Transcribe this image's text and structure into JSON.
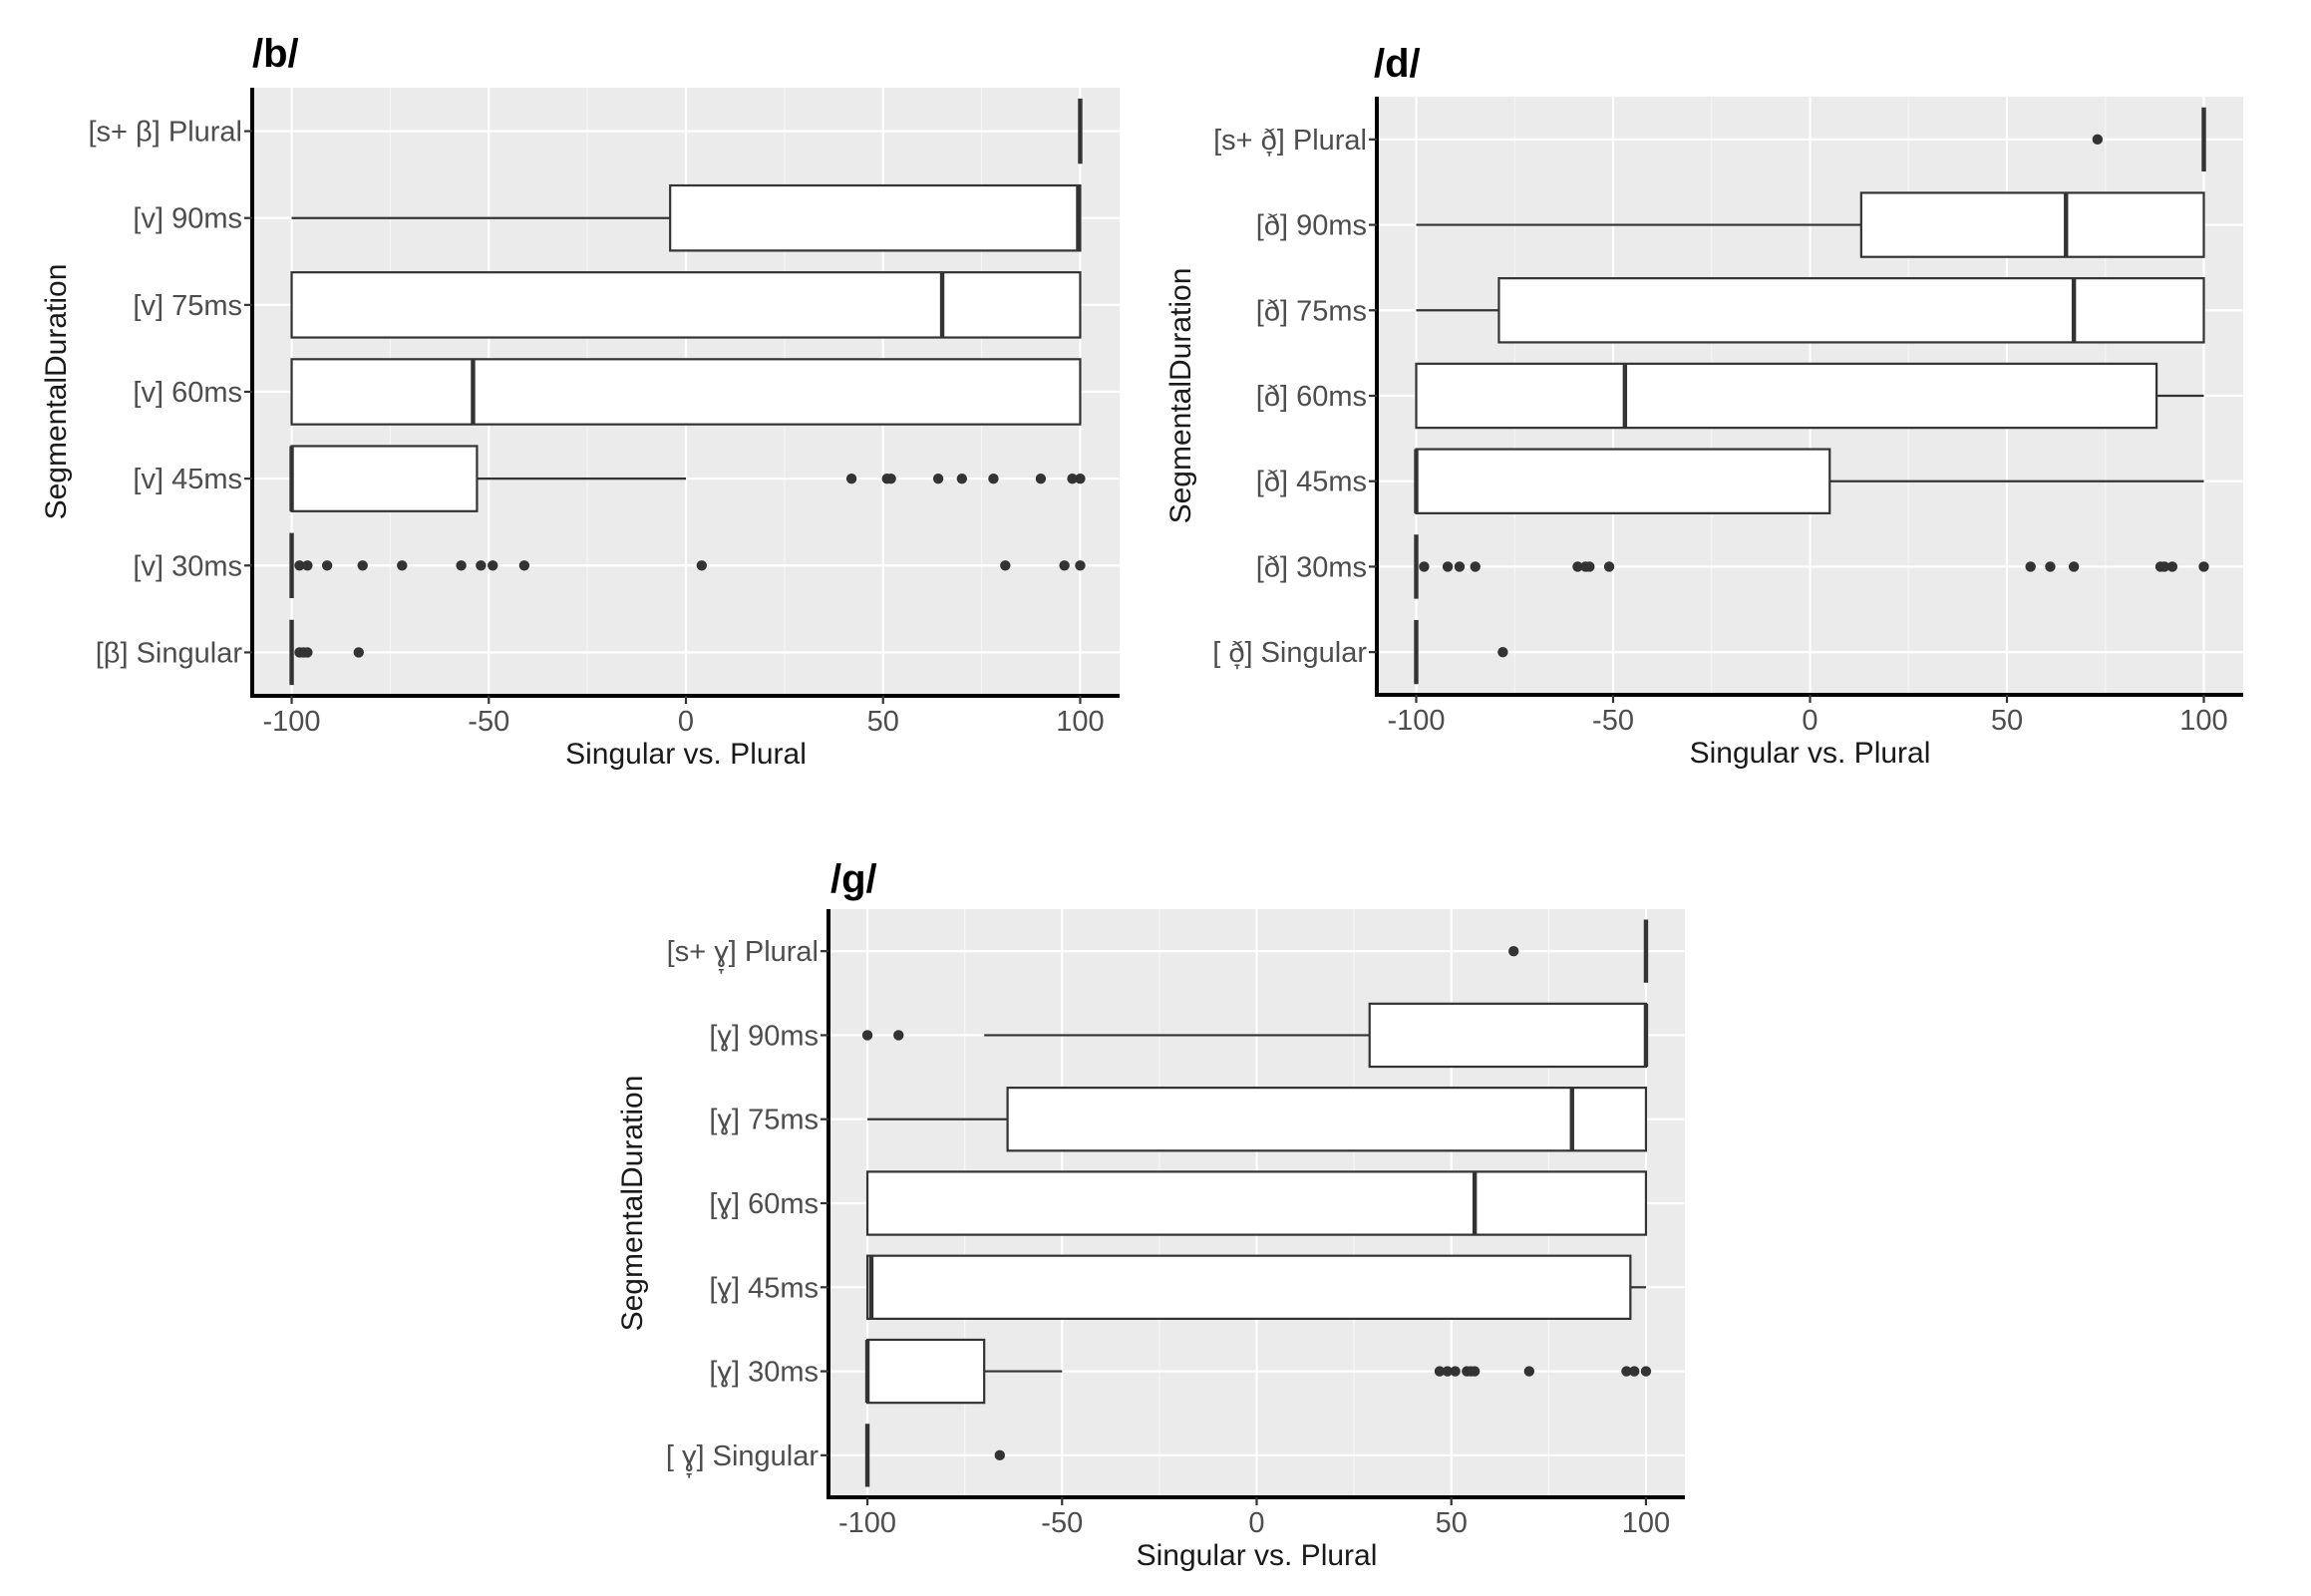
{
  "chart_data": [
    {
      "type": "boxplot",
      "orientation": "horizontal",
      "title": "/b/",
      "xlabel": "Singular vs. Plural",
      "ylabel": "SegmentalDuration",
      "xlim": [
        -110,
        110
      ],
      "xticks": [
        -100,
        -50,
        0,
        50,
        100
      ],
      "grid": true,
      "categories": [
        "[s+ β] Plural",
        "[v] 90ms",
        "[v] 75ms",
        "[v] 60ms",
        "[v] 45ms",
        "[v] 30ms",
        "[β] Singular"
      ],
      "boxes": [
        {
          "min": 100,
          "q1": 100,
          "median": 100,
          "q3": 100,
          "max": 100,
          "outliers": []
        },
        {
          "min": -100,
          "q1": -4,
          "median": 99.5,
          "q3": 100,
          "max": 100,
          "outliers": []
        },
        {
          "min": -100,
          "q1": -100,
          "median": 65,
          "q3": 100,
          "max": 100,
          "outliers": []
        },
        {
          "min": -100,
          "q1": -100,
          "median": -54,
          "q3": 100,
          "max": 100,
          "outliers": []
        },
        {
          "min": -100,
          "q1": -100,
          "median": -100,
          "q3": -53,
          "max": 0,
          "outliers": [
            42,
            51,
            52,
            64,
            70,
            78,
            90,
            98,
            100
          ]
        },
        {
          "min": -100,
          "q1": -100,
          "median": -100,
          "q3": -100,
          "max": -100,
          "outliers": [
            -98,
            -96,
            -91,
            -82,
            -72,
            -57,
            -52,
            -49,
            -41,
            4,
            81,
            96,
            100
          ]
        },
        {
          "min": -100,
          "q1": -100,
          "median": -100,
          "q3": -100,
          "max": -100,
          "outliers": [
            -98,
            -97,
            -96,
            -83
          ]
        }
      ]
    },
    {
      "type": "boxplot",
      "orientation": "horizontal",
      "title": "/d/",
      "xlabel": "Singular vs. Plural",
      "ylabel": "SegmentalDuration",
      "xlim": [
        -110,
        110
      ],
      "xticks": [
        -100,
        -50,
        0,
        50,
        100
      ],
      "grid": true,
      "categories": [
        "[s+ ð̞] Plural",
        "[ð] 90ms",
        "[ð] 75ms",
        "[ð] 60ms",
        "[ð] 45ms",
        "[ð] 30ms",
        "[ ð̞] Singular"
      ],
      "boxes": [
        {
          "min": 100,
          "q1": 100,
          "median": 100,
          "q3": 100,
          "max": 100,
          "outliers": [
            73
          ]
        },
        {
          "min": -100,
          "q1": 13,
          "median": 65,
          "q3": 100,
          "max": 100,
          "outliers": []
        },
        {
          "min": -100,
          "q1": -79,
          "median": 67,
          "q3": 100,
          "max": 100,
          "outliers": []
        },
        {
          "min": -100,
          "q1": -100,
          "median": -47,
          "q3": 88,
          "max": 100,
          "outliers": []
        },
        {
          "min": -100,
          "q1": -100,
          "median": -100,
          "q3": 5,
          "max": 100,
          "outliers": []
        },
        {
          "min": -100,
          "q1": -100,
          "median": -100,
          "q3": -100,
          "max": -100,
          "outliers": [
            -98,
            -92,
            -89,
            -85,
            -59,
            -57,
            -56,
            -51,
            56,
            61,
            67,
            89,
            90,
            92,
            100
          ]
        },
        {
          "min": -100,
          "q1": -100,
          "median": -100,
          "q3": -100,
          "max": -100,
          "outliers": [
            -78
          ]
        }
      ]
    },
    {
      "type": "boxplot",
      "orientation": "horizontal",
      "title": "/g/",
      "xlabel": "Singular vs. Plural",
      "ylabel": "SegmentalDuration",
      "xlim": [
        -110,
        110
      ],
      "xticks": [
        -100,
        -50,
        0,
        50,
        100
      ],
      "grid": true,
      "categories": [
        "[s+ ɣ̞] Plural",
        "[ɣ] 90ms",
        "[ɣ] 75ms",
        "[ɣ] 60ms",
        "[ɣ] 45ms",
        "[ɣ] 30ms",
        "[ ɣ̞] Singular"
      ],
      "boxes": [
        {
          "min": 100,
          "q1": 100,
          "median": 100,
          "q3": 100,
          "max": 100,
          "outliers": [
            66
          ]
        },
        {
          "min": -70,
          "q1": 29,
          "median": 100,
          "q3": 100,
          "max": 100,
          "outliers": [
            -100,
            -92
          ]
        },
        {
          "min": -100,
          "q1": -64,
          "median": 81,
          "q3": 100,
          "max": 100,
          "outliers": []
        },
        {
          "min": -100,
          "q1": -100,
          "median": 56,
          "q3": 100,
          "max": 100,
          "outliers": []
        },
        {
          "min": -100,
          "q1": -100,
          "median": -99,
          "q3": 96,
          "max": 100,
          "outliers": []
        },
        {
          "min": -100,
          "q1": -100,
          "median": -100,
          "q3": -70,
          "max": -50,
          "outliers": [
            47,
            49,
            51,
            54,
            55,
            56,
            70,
            95,
            97,
            100
          ]
        },
        {
          "min": -100,
          "q1": -100,
          "median": -100,
          "q3": -100,
          "max": -100,
          "outliers": [
            -66
          ]
        }
      ]
    }
  ]
}
